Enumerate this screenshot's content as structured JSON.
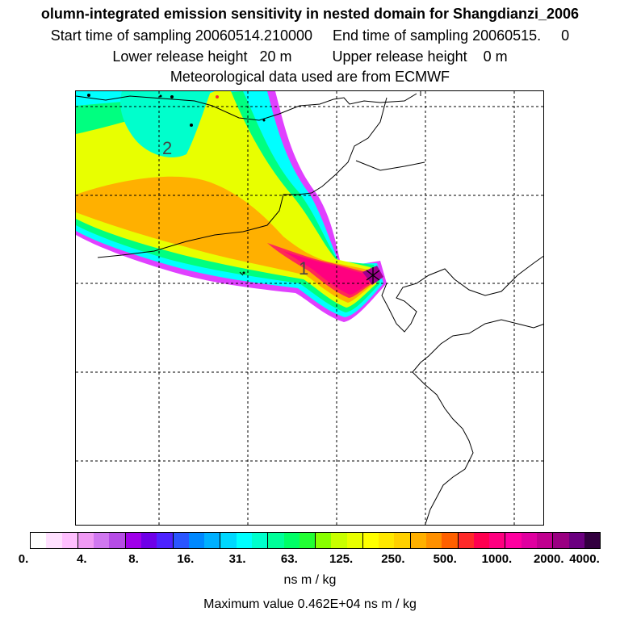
{
  "header": {
    "title": "olumn-integrated emission sensitivity in nested domain for Shangdianzi_2006",
    "sampling": "Start time of sampling 20060514.210000     End time of sampling 20060515.     0",
    "release": "Lower release height   20 m          Upper release height    0 m",
    "met": "Meteorological data used are from ECMWF"
  },
  "map": {
    "contour_labels": [
      "2",
      "1"
    ],
    "plume_color_order": [
      "#ff00ff",
      "#00ffff",
      "#00ff66",
      "#ffff00",
      "#ff0080",
      "#6b0080"
    ]
  },
  "colorbar": {
    "colors": [
      "#ffffff",
      "#ffe0ff",
      "#ffbfff",
      "#f09af4",
      "#d077f0",
      "#b64ce6",
      "#a000ea",
      "#6e00e8",
      "#4d22ff",
      "#2a55ff",
      "#0088ff",
      "#00b0ff",
      "#00d8ff",
      "#00ffff",
      "#00ffcc",
      "#00ff99",
      "#00ff66",
      "#22ff33",
      "#88ff00",
      "#c8ff00",
      "#e8ff00",
      "#ffff00",
      "#ffe800",
      "#ffd000",
      "#ffb000",
      "#ff9000",
      "#ff6000",
      "#ff2a2a",
      "#ff0050",
      "#ff0080",
      "#ff00a0",
      "#e000a0",
      "#c0008f",
      "#9a0082",
      "#6b0080",
      "#330040"
    ],
    "ticks": [
      "0.",
      "4.",
      "8.",
      "16.",
      "31.",
      "63.",
      "125.",
      "250.",
      "500.",
      "1000.",
      "2000.",
      "4000."
    ],
    "units": "ns m / kg",
    "max_label": "Maximum value  0.462E+04 ns m / kg"
  }
}
